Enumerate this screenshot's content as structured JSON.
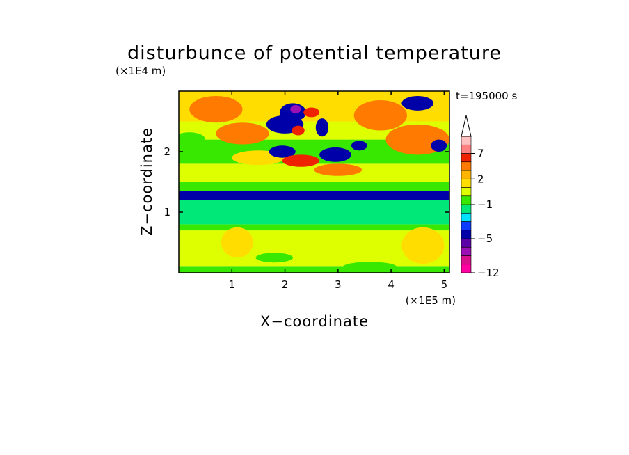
{
  "chart_data": {
    "type": "heatmap",
    "title": "disturbunce of potential temperature",
    "xlabel": "X−coordinate",
    "ylabel": "Z−coordinate",
    "x_unit": "(×1E5 m)",
    "y_unit": "(×1E4 m)",
    "time_label": "t=195000 s",
    "xlim": [
      0,
      5.1
    ],
    "ylim": [
      0,
      3.0
    ],
    "xticks": [
      1,
      2,
      3,
      4,
      5
    ],
    "yticks": [
      1,
      2
    ],
    "colorbar": {
      "levels": [
        -12,
        -10,
        -8,
        -6,
        -5,
        -4,
        -3,
        -2,
        -1,
        0,
        1,
        2,
        3,
        5,
        7,
        9,
        11
      ],
      "tick_labels": [
        "−12",
        "−5",
        "−1",
        "2",
        "7"
      ],
      "tick_values": [
        -12,
        -5,
        -1,
        2,
        7
      ],
      "colors": [
        "#ff00a0",
        "#d8108c",
        "#9a10b4",
        "#5c00a8",
        "#0000a8",
        "#0c3cff",
        "#00e0ff",
        "#00e878",
        "#38e800",
        "#ddff00",
        "#ffdd00",
        "#ffb400",
        "#ff7a00",
        "#ee2200",
        "#ff8080",
        "#ffc0c0"
      ],
      "extend": "max"
    },
    "bands": [
      {
        "z": [
          0.0,
          0.1
        ],
        "value": -0.5
      },
      {
        "z": [
          0.1,
          0.7
        ],
        "value": 0.5
      },
      {
        "z": [
          0.7,
          0.8
        ],
        "value": -0.5
      },
      {
        "z": [
          0.8,
          1.2
        ],
        "value": -1.5
      },
      {
        "z": [
          1.2,
          1.35
        ],
        "value": -4.5
      },
      {
        "z": [
          1.35,
          1.5
        ],
        "value": -0.5
      },
      {
        "z": [
          1.5,
          1.8
        ],
        "value": 0.5
      },
      {
        "z": [
          1.8,
          2.2
        ],
        "value": -0.5
      },
      {
        "z": [
          2.2,
          2.5
        ],
        "value": 0.5
      },
      {
        "z": [
          2.5,
          3.0
        ],
        "value": 1.5
      }
    ],
    "features": [
      {
        "x": 0.7,
        "z": 2.7,
        "rx": 0.5,
        "rz": 0.22,
        "value": 3.5
      },
      {
        "x": 0.2,
        "z": 2.2,
        "rx": 0.3,
        "rz": 0.12,
        "value": -0.5
      },
      {
        "x": 1.2,
        "z": 2.3,
        "rx": 0.5,
        "rz": 0.18,
        "value": 3.5
      },
      {
        "x": 1.5,
        "z": 1.9,
        "rx": 0.5,
        "rz": 0.12,
        "value": 1.5
      },
      {
        "x": 2.0,
        "z": 2.45,
        "rx": 0.35,
        "rz": 0.15,
        "value": -4.5
      },
      {
        "x": 2.15,
        "z": 2.65,
        "rx": 0.25,
        "rz": 0.15,
        "value": -4.5
      },
      {
        "x": 2.2,
        "z": 2.7,
        "rx": 0.1,
        "rz": 0.07,
        "value": -7
      },
      {
        "x": 2.25,
        "z": 2.35,
        "rx": 0.12,
        "rz": 0.08,
        "value": 5
      },
      {
        "x": 1.95,
        "z": 2.0,
        "rx": 0.25,
        "rz": 0.1,
        "value": -4.5
      },
      {
        "x": 2.5,
        "z": 2.65,
        "rx": 0.15,
        "rz": 0.08,
        "value": 5
      },
      {
        "x": 2.7,
        "z": 2.4,
        "rx": 0.12,
        "rz": 0.15,
        "value": -4.5
      },
      {
        "x": 2.3,
        "z": 1.85,
        "rx": 0.35,
        "rz": 0.1,
        "value": 5
      },
      {
        "x": 2.95,
        "z": 1.95,
        "rx": 0.3,
        "rz": 0.12,
        "value": -4.5
      },
      {
        "x": 3.0,
        "z": 1.7,
        "rx": 0.45,
        "rz": 0.1,
        "value": 3.5
      },
      {
        "x": 3.8,
        "z": 2.6,
        "rx": 0.5,
        "rz": 0.25,
        "value": 3.5
      },
      {
        "x": 4.5,
        "z": 2.2,
        "rx": 0.6,
        "rz": 0.25,
        "value": 3.5
      },
      {
        "x": 4.5,
        "z": 2.8,
        "rx": 0.3,
        "rz": 0.12,
        "value": -4.5
      },
      {
        "x": 4.9,
        "z": 2.1,
        "rx": 0.15,
        "rz": 0.1,
        "value": -4.5
      },
      {
        "x": 3.4,
        "z": 2.1,
        "rx": 0.15,
        "rz": 0.08,
        "value": -4.5
      },
      {
        "x": 4.6,
        "z": 0.45,
        "rx": 0.4,
        "rz": 0.3,
        "value": 1.5
      },
      {
        "x": 1.1,
        "z": 0.5,
        "rx": 0.3,
        "rz": 0.25,
        "value": 1.5
      },
      {
        "x": 1.8,
        "z": 0.25,
        "rx": 0.35,
        "rz": 0.08,
        "value": -0.5
      },
      {
        "x": 3.6,
        "z": 0.1,
        "rx": 0.5,
        "rz": 0.08,
        "value": -0.5
      }
    ]
  }
}
